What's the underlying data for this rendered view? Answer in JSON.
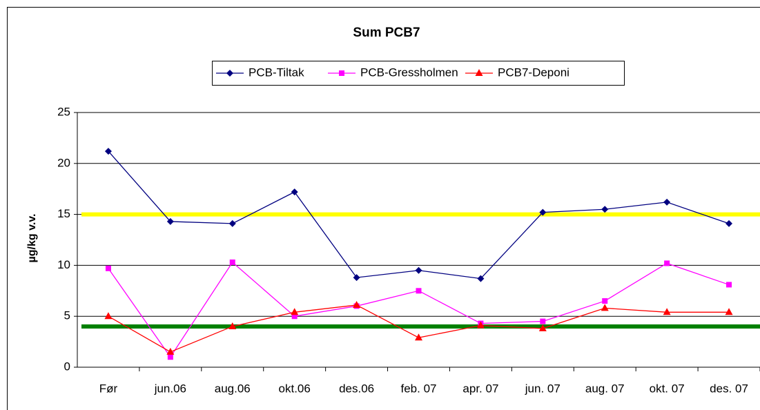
{
  "chart_data": {
    "type": "line",
    "title": "Sum PCB7",
    "y_label": "µg/kg v.v.",
    "categories": [
      "Før",
      "jun.06",
      "aug.06",
      "okt.06",
      "des.06",
      "feb. 07",
      "apr. 07",
      "jun. 07",
      "aug. 07",
      "okt. 07",
      "des. 07"
    ],
    "series": [
      {
        "name": "PCB-Tiltak",
        "color": "#000080",
        "marker": "diamond",
        "values": [
          21.2,
          14.3,
          14.1,
          17.2,
          8.8,
          9.5,
          8.7,
          15.2,
          15.5,
          16.2,
          14.1
        ]
      },
      {
        "name": "PCB-Gressholmen",
        "color": "#ff00ff",
        "marker": "square",
        "values": [
          9.7,
          1.0,
          10.3,
          5.0,
          6.0,
          7.5,
          4.3,
          4.5,
          6.5,
          10.2,
          8.1
        ]
      },
      {
        "name": "PCB7-Deponi",
        "color": "#ff0000",
        "marker": "triangle",
        "values": [
          5.0,
          1.5,
          4.0,
          5.4,
          6.1,
          2.9,
          4.1,
          3.8,
          5.8,
          5.4,
          5.4
        ]
      }
    ],
    "reference_lines": [
      {
        "value": 15,
        "color": "#ffff00"
      },
      {
        "value": 4,
        "color": "#008000"
      }
    ],
    "ylim": [
      0,
      25
    ],
    "yticks": [
      0,
      5,
      10,
      15,
      20,
      25
    ],
    "grid": true,
    "legend": "top"
  }
}
